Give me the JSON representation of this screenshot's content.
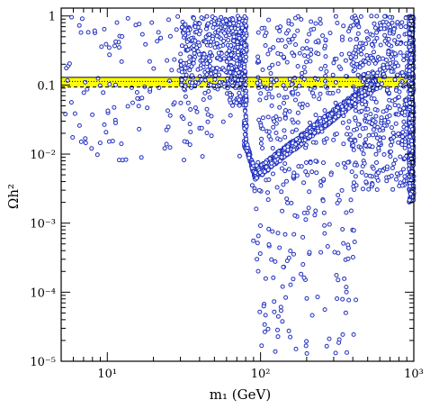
{
  "chart_data": {
    "type": "scatter",
    "xlabel": "m₁  (GeV)",
    "ylabel": "Ωh²",
    "xscale": "log",
    "yscale": "log",
    "xlim": [
      5,
      1000
    ],
    "ylim": [
      1e-05,
      1.3
    ],
    "x_ticks": [
      {
        "value": 10,
        "label": "10¹"
      },
      {
        "value": 100,
        "label": "10²"
      },
      {
        "value": 1000,
        "label": "10³"
      }
    ],
    "y_ticks": [
      {
        "value": 1,
        "label": "1"
      },
      {
        "value": 0.1,
        "label": "0.1"
      },
      {
        "value": 0.01,
        "label": "10⁻²"
      },
      {
        "value": 0.001,
        "label": "10⁻³"
      },
      {
        "value": 0.0001,
        "label": "10⁻⁴"
      },
      {
        "value": 1e-05,
        "label": "10⁻⁵"
      }
    ],
    "band": {
      "y_low": 0.094,
      "y_high": 0.129,
      "color": "#ffff00"
    },
    "reference_lines": [
      {
        "y": 0.129,
        "style": "solid"
      },
      {
        "y": 0.113,
        "style": "dotted"
      },
      {
        "y": 0.094,
        "style": "dashed"
      }
    ],
    "marker": {
      "shape": "open-circle",
      "color": "#1f2fbf"
    },
    "regions": [
      {
        "name": "low-mass scatter",
        "x_range": [
          5,
          80
        ],
        "y_range": [
          0.005,
          1.0
        ]
      },
      {
        "name": "dense block",
        "x_range": [
          30,
          80
        ],
        "y_range": [
          0.1,
          1.0
        ]
      },
      {
        "name": "edge at ~80 GeV",
        "x_range": [
          78,
          82
        ],
        "y_range": [
          0.01,
          1.0
        ]
      },
      {
        "name": "dip at ~80-90 GeV",
        "x_range": [
          80,
          90
        ],
        "y_range": [
          0.005,
          0.02
        ]
      },
      {
        "name": "diagonal branch",
        "x_range": [
          90,
          600
        ],
        "y_range": [
          0.005,
          0.13
        ]
      },
      {
        "name": "lower scatter",
        "x_range": [
          85,
          400
        ],
        "y_range": [
          1e-05,
          0.01
        ]
      },
      {
        "name": "upper-right scatter",
        "x_range": [
          90,
          1000
        ],
        "y_range": [
          0.01,
          1.0
        ]
      },
      {
        "name": "right edge at ~1000 GeV",
        "x_range": [
          950,
          1000
        ],
        "y_range": [
          0.001,
          1.0
        ]
      }
    ]
  }
}
